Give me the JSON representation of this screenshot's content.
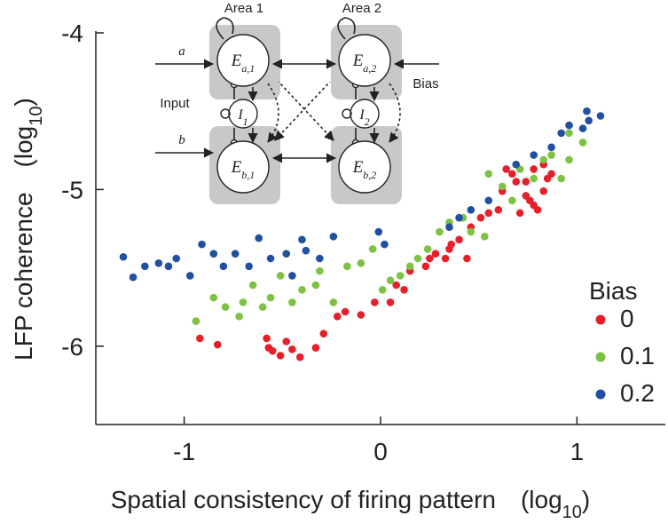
{
  "chart_data": {
    "type": "scatter",
    "xlabel": "Spatial consistency of firing pattern　(log",
    "xlabel_sub": "10",
    "xlabel_end": ")",
    "ylabel": "LFP coherence　(log",
    "ylabel_sub": "10",
    "ylabel_end": ")",
    "xlim": [
      -1.45,
      1.45
    ],
    "ylim": [
      -6.5,
      -4
    ],
    "xticks": [
      -1,
      0,
      1
    ],
    "yticks": [
      -6,
      -5,
      -4
    ],
    "legend_title": "Bias",
    "legend_position": "lower right",
    "series": [
      {
        "name": "0",
        "color": "#e5202a",
        "x": [
          -0.92,
          -0.83,
          -0.58,
          -0.57,
          -0.55,
          -0.51,
          -0.48,
          -0.45,
          -0.41,
          -0.33,
          -0.29,
          -0.22,
          -0.18,
          -0.1,
          -0.03,
          0.05,
          0.08,
          0.12,
          0.15,
          0.23,
          0.25,
          0.28,
          0.33,
          0.35,
          0.4,
          0.44,
          0.46,
          0.51,
          0.55,
          0.6,
          0.62,
          0.64,
          0.67,
          0.69,
          0.74,
          0.76,
          0.78,
          0.8,
          0.83,
          0.85,
          0.87,
          0.74,
          0.78,
          0.83,
          0.71,
          0.36
        ],
        "values": [
          -5.95,
          -5.99,
          -5.95,
          -6.01,
          -6.03,
          -6.06,
          -5.97,
          -6.02,
          -6.07,
          -6.01,
          -5.92,
          -5.81,
          -5.78,
          -5.8,
          -5.72,
          -5.72,
          -5.61,
          -5.64,
          -5.52,
          -5.49,
          -5.44,
          -5.41,
          -5.44,
          -5.38,
          -5.32,
          -5.44,
          -5.24,
          -5.18,
          -5.15,
          -5.13,
          -5.01,
          -4.87,
          -4.9,
          -4.95,
          -5.04,
          -5.07,
          -5.1,
          -5.13,
          -5.01,
          -4.93,
          -4.9,
          -4.95,
          -4.87,
          -4.84,
          -5.15,
          -5.35
        ]
      },
      {
        "name": "0.1",
        "color": "#7dc242",
        "x": [
          -0.94,
          -0.85,
          -0.79,
          -0.72,
          -0.7,
          -0.65,
          -0.6,
          -0.56,
          -0.51,
          -0.45,
          -0.4,
          -0.33,
          -0.31,
          -0.24,
          -0.17,
          -0.1,
          -0.04,
          0.01,
          0.05,
          0.1,
          0.15,
          0.19,
          0.24,
          0.3,
          0.35,
          0.42,
          0.46,
          0.53,
          0.55,
          0.62,
          0.67,
          0.71,
          0.78,
          0.83,
          0.87,
          0.92,
          0.96,
          1.03,
          0.96
        ],
        "values": [
          -5.84,
          -5.69,
          -5.75,
          -5.81,
          -5.72,
          -5.61,
          -5.75,
          -5.69,
          -5.55,
          -5.72,
          -5.64,
          -5.61,
          -5.52,
          -5.72,
          -5.49,
          -5.47,
          -5.38,
          -5.64,
          -5.58,
          -5.55,
          -5.49,
          -5.44,
          -5.38,
          -5.27,
          -5.21,
          -5.18,
          -5.27,
          -5.3,
          -4.9,
          -4.98,
          -5.07,
          -4.87,
          -4.93,
          -4.81,
          -4.78,
          -4.93,
          -4.81,
          -4.7,
          -4.64
        ]
      },
      {
        "name": "0.2",
        "color": "#2150a0",
        "x": [
          -1.31,
          -1.26,
          -1.2,
          -1.13,
          -1.08,
          -1.04,
          -0.97,
          -0.91,
          -0.85,
          -0.8,
          -0.74,
          -0.67,
          -0.62,
          -0.56,
          -0.48,
          -0.45,
          -0.4,
          -0.38,
          -0.31,
          -0.24,
          -0.01,
          0.02,
          0.35,
          0.4,
          0.46,
          0.55,
          0.69,
          0.78,
          0.87,
          0.92,
          0.96,
          1.03,
          1.05,
          1.12,
          1.06
        ],
        "values": [
          -5.43,
          -5.56,
          -5.49,
          -5.47,
          -5.49,
          -5.44,
          -5.55,
          -5.35,
          -5.41,
          -5.49,
          -5.41,
          -5.49,
          -5.31,
          -5.44,
          -5.41,
          -5.55,
          -5.32,
          -5.39,
          -5.44,
          -5.3,
          -5.27,
          -5.35,
          -5.24,
          -5.18,
          -5.13,
          -5.07,
          -4.84,
          -4.78,
          -4.73,
          -4.64,
          -4.59,
          -4.61,
          -4.5,
          -4.53,
          -4.56
        ]
      }
    ]
  },
  "inset": {
    "area1": "Area 1",
    "area2": "Area 2",
    "input": "Input",
    "bias": "Bias",
    "a": "a",
    "b": "b",
    "nodes": [
      {
        "label": "E",
        "sub": "a,1"
      },
      {
        "label": "I",
        "sub": "1"
      },
      {
        "label": "E",
        "sub": "b,1"
      },
      {
        "label": "E",
        "sub": "a,2"
      },
      {
        "label": "I",
        "sub": "2"
      },
      {
        "label": "E",
        "sub": "b,2"
      }
    ]
  }
}
